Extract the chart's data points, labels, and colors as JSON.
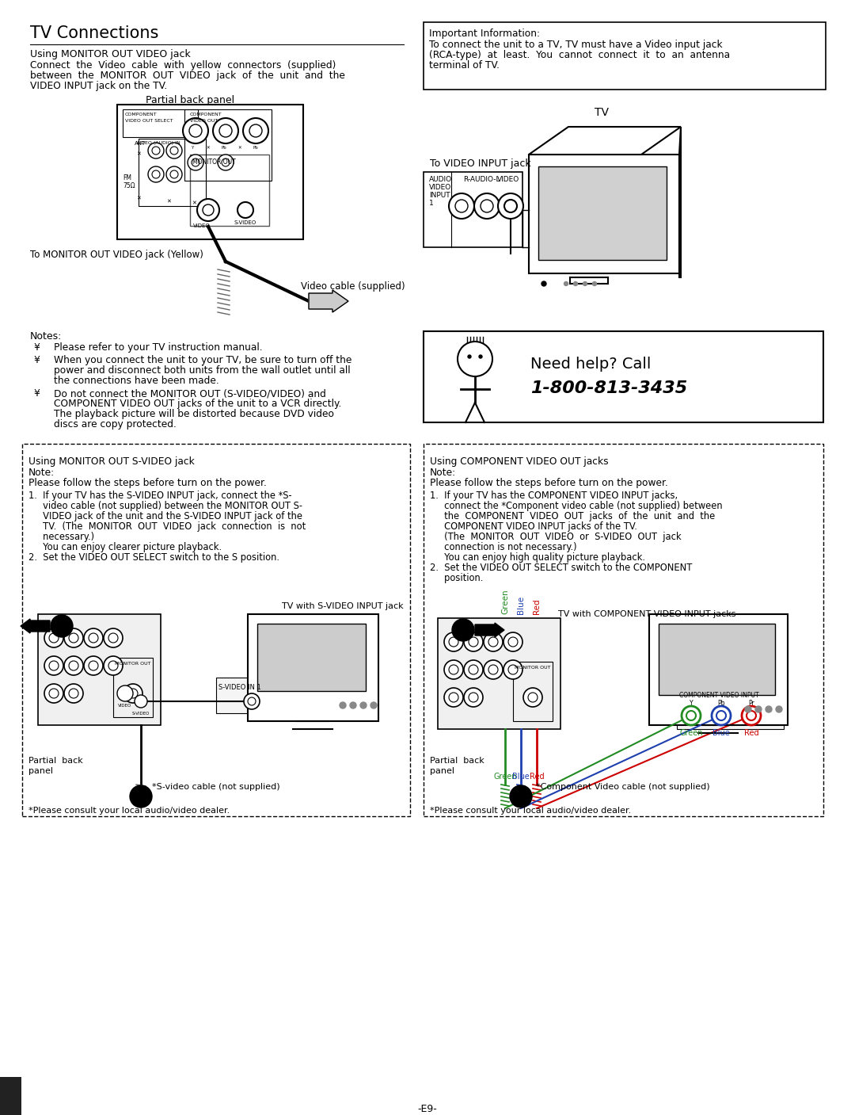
{
  "bg_color": "#ffffff",
  "page_number": "-E9-",
  "title": "TV Connections",
  "subtitle1": "Using MONITOR OUT VIDEO jack",
  "subtitle2_lines": [
    "Connect  the  Video  cable  with  yellow  connectors  (supplied)",
    "between  the  MONITOR  OUT  VIDEO  jack  of  the  unit  and  the",
    "VIDEO INPUT jack on the TV."
  ],
  "important_box_lines": [
    "Important Information:",
    "To connect the unit to a TV, TV must have a Video input jack",
    "(RCA-type)  at  least.  You  cannot  connect  it  to  an  antenna",
    "terminal of TV."
  ],
  "notes_title": "Notes:",
  "notes_bullets": [
    [
      "Please refer to your TV instruction manual."
    ],
    [
      "When you connect the unit to your TV, be sure to turn off the",
      "power and disconnect both units from the wall outlet until all",
      "the connections have been made."
    ],
    [
      "Do not connect the MONITOR OUT (S-VIDEO/VIDEO) and",
      "COMPONENT VIDEO OUT jacks of the unit to a VCR directly.",
      "The playback picture will be distorted because DVD video",
      "discs are copy protected."
    ]
  ],
  "need_help_line1": "Need help? Call",
  "need_help_line2": "1-800-813-3435",
  "svideo_title": "Using MONITOR OUT S-VIDEO jack",
  "svideo_note": "Note:",
  "svideo_note2": "Please follow the steps before turn on the power.",
  "svideo_steps": [
    "1.  If your TV has the S-VIDEO INPUT jack, connect the *S-",
    "     video cable (not supplied) between the MONITOR OUT S-",
    "     VIDEO jack of the unit and the S-VIDEO INPUT jack of the",
    "     TV.  (The  MONITOR  OUT  VIDEO  jack  connection  is  not",
    "     necessary.)",
    "     You can enjoy clearer picture playback.",
    "2.  Set the VIDEO OUT SELECT switch to the S position."
  ],
  "svideo_tv_label": "TV with S-VIDEO INPUT jack",
  "svideo_back_label": [
    "Partial  back",
    "panel"
  ],
  "svideo_cable_label": "*S-video cable (not supplied)",
  "svideo_consult": "*Please consult your local audio/video dealer.",
  "component_title": "Using COMPONENT VIDEO OUT jacks",
  "component_note": "Note:",
  "component_note2": "Please follow the steps before turn on the power.",
  "component_steps": [
    "1.  If your TV has the COMPONENT VIDEO INPUT jacks,",
    "     connect the *Component video cable (not supplied) between",
    "     the  COMPONENT  VIDEO  OUT  jacks  of  the  unit  and  the",
    "     COMPONENT VIDEO INPUT jacks of the TV.",
    "     (The  MONITOR  OUT  VIDEO  or  S-VIDEO  OUT  jack",
    "     connection is not necessary.)",
    "     You can enjoy high quality picture playback.",
    "2.  Set the VIDEO OUT SELECT switch to the COMPONENT",
    "     position."
  ],
  "component_tv_label": "TV with COMPONENT VIDEO INPUT jacks",
  "component_back_label": [
    "Partial  back",
    "panel"
  ],
  "component_cable_label": "*Component Video cable (not supplied)",
  "component_consult": "*Please consult your local audio/video dealer.",
  "green_blue_red": [
    "Green",
    "Blue",
    "Red"
  ],
  "partial_back_panel_label": "Partial back panel",
  "to_monitor_label": "To MONITOR OUT VIDEO jack (Yellow)",
  "video_cable_label": "Video cable (supplied)",
  "to_video_input_label": "To VIDEO INPUT jack",
  "tv_label": "TV"
}
